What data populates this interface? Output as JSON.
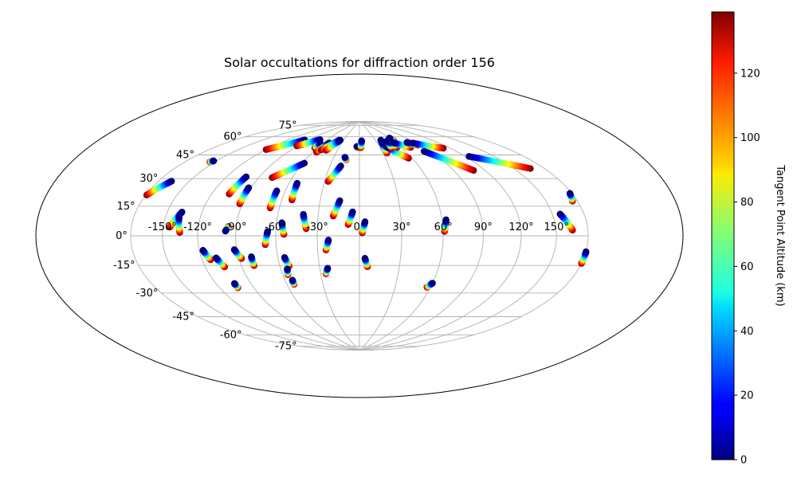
{
  "chart_data": {
    "type": "scatter",
    "projection": "hammer",
    "title": "Solar occultations for diffraction order 156",
    "grid": true,
    "longitude_ticks": [
      -150,
      -120,
      -90,
      -60,
      -30,
      0,
      30,
      60,
      90,
      120,
      150
    ],
    "longitude_tick_labels": [
      "-150°",
      "-120°",
      "-90°",
      "-60°",
      "-30°",
      "0°",
      "30°",
      "60°",
      "90°",
      "120°",
      "150°"
    ],
    "latitude_ticks": [
      -75,
      -60,
      -45,
      -30,
      -15,
      0,
      15,
      30,
      45,
      60,
      75
    ],
    "latitude_tick_labels": [
      "-75°",
      "-60°",
      "-45°",
      "-30°",
      "-15°",
      "0°",
      "15°",
      "30°",
      "45°",
      "60°",
      "75°"
    ],
    "colorbar": {
      "label": "Tangent Point Altitude (km)",
      "colormap": "jet",
      "range": [
        0,
        139
      ],
      "ticks": [
        0,
        20,
        40,
        60,
        80,
        100,
        120
      ],
      "tick_labels": [
        "0",
        "20",
        "40",
        "60",
        "80",
        "100",
        "120"
      ]
    },
    "tracks": [
      {
        "start": [
          -179,
          21
        ],
        "end": [
          -167,
          30
        ]
      },
      {
        "start": [
          -155,
          44
        ],
        "end": [
          -153,
          45
        ]
      },
      {
        "start": [
          -144,
          5
        ],
        "end": [
          -137,
          14
        ]
      },
      {
        "start": [
          -135,
          2
        ],
        "end": [
          -138,
          11
        ]
      },
      {
        "start": [
          -120,
          58
        ],
        "end": [
          -96,
          69
        ]
      },
      {
        "start": [
          -113,
          -15
        ],
        "end": [
          -117,
          -9
        ]
      },
      {
        "start": [
          -104,
          -20
        ],
        "end": [
          -108,
          -14
        ]
      },
      {
        "start": [
          -104,
          -34
        ],
        "end": [
          -104,
          -31
        ]
      },
      {
        "start": [
          -105,
          27
        ],
        "end": [
          -102,
          39
        ]
      },
      {
        "start": [
          -96,
          6
        ],
        "end": [
          -98,
          3
        ]
      },
      {
        "start": [
          -92,
          21
        ],
        "end": [
          -92,
          32
        ]
      },
      {
        "start": [
          -88,
          -15
        ],
        "end": [
          -92,
          -9
        ]
      },
      {
        "start": [
          -80,
          -20
        ],
        "end": [
          -80,
          -14
        ]
      },
      {
        "start": [
          -91,
          64
        ],
        "end": [
          -73,
          71
        ]
      },
      {
        "start": [
          -78,
          40
        ],
        "end": [
          -58,
          52
        ]
      },
      {
        "start": [
          -67,
          19
        ],
        "end": [
          -67,
          31
        ]
      },
      {
        "start": [
          -68,
          -6
        ],
        "end": [
          -66,
          3
        ]
      },
      {
        "start": [
          -63,
          64
        ],
        "end": [
          -63,
          68
        ]
      },
      {
        "start": [
          -55,
          61
        ],
        "end": [
          -50,
          69
        ]
      },
      {
        "start": [
          -52,
          63
        ],
        "end": [
          -38,
          72
        ]
      },
      {
        "start": [
          -54,
          1
        ],
        "end": [
          -56,
          9
        ]
      },
      {
        "start": [
          -52,
          25
        ],
        "end": [
          -53,
          37
        ]
      },
      {
        "start": [
          -53,
          -21
        ],
        "end": [
          -55,
          -15
        ]
      },
      {
        "start": [
          -56,
          -27
        ],
        "end": [
          -55,
          -23
        ]
      },
      {
        "start": [
          -54,
          -34
        ],
        "end": [
          -54,
          -31
        ]
      },
      {
        "start": [
          -45,
          63
        ],
        "end": [
          -36,
          72
        ]
      },
      {
        "start": [
          -38,
          5
        ],
        "end": [
          -41,
          15
        ]
      },
      {
        "start": [
          -27,
          39
        ],
        "end": [
          -19,
          51
        ]
      },
      {
        "start": [
          -15,
          56
        ],
        "end": [
          -17,
          58
        ]
      },
      {
        "start": [
          -24,
          -10
        ],
        "end": [
          -22,
          -3
        ]
      },
      {
        "start": [
          -26,
          -27
        ],
        "end": [
          -24,
          -23
        ]
      },
      {
        "start": [
          -19,
          14
        ],
        "end": [
          -15,
          25
        ]
      },
      {
        "start": [
          -8,
          8
        ],
        "end": [
          -5,
          17
        ]
      },
      {
        "start": [
          -2,
          66
        ],
        "end": [
          -4,
          67
        ]
      },
      {
        "start": [
          2,
          66
        ],
        "end": [
          4,
          72
        ]
      },
      {
        "start": [
          2,
          2
        ],
        "end": [
          4,
          10
        ]
      },
      {
        "start": [
          6,
          -22
        ],
        "end": [
          4,
          -16
        ]
      },
      {
        "start": [
          36,
          66
        ],
        "end": [
          40,
          72
        ]
      },
      {
        "start": [
          35,
          61
        ],
        "end": [
          38,
          70
        ]
      },
      {
        "start": [
          56,
          56
        ],
        "end": [
          40,
          66
        ]
      },
      {
        "start": [
          46,
          65
        ],
        "end": [
          50,
          71
        ]
      },
      {
        "start": [
          54,
          65
        ],
        "end": [
          52,
          71
        ]
      },
      {
        "start": [
          58,
          66
        ],
        "end": [
          50,
          70
        ]
      },
      {
        "start": [
          62,
          71
        ],
        "end": [
          60,
          73
        ]
      },
      {
        "start": [
          73,
          64
        ],
        "end": [
          57,
          69
        ]
      },
      {
        "start": [
          61,
          3
        ],
        "end": [
          63,
          11
        ]
      },
      {
        "start": [
          57,
          -36
        ],
        "end": [
          60,
          -33
        ]
      },
      {
        "start": [
          87,
          65
        ],
        "end": [
          78,
          68
        ]
      },
      {
        "start": [
          112,
          60
        ],
        "end": [
          85,
          67
        ]
      },
      {
        "start": [
          109,
          43
        ],
        "end": [
          83,
          60
        ]
      },
      {
        "start": [
          166,
          38
        ],
        "end": [
          124,
          52
        ]
      },
      {
        "start": [
          165,
          3
        ],
        "end": [
          157,
          12
        ]
      },
      {
        "start": [
          175,
          18
        ],
        "end": [
          178,
          22
        ]
      },
      {
        "start": [
          180,
          -14
        ],
        "end": [
          180,
          -8
        ]
      }
    ]
  }
}
